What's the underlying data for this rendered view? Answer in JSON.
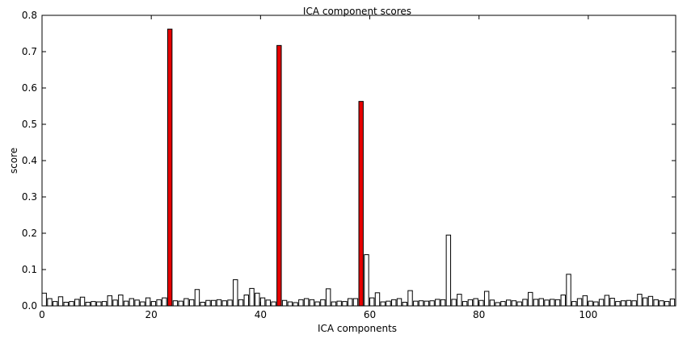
{
  "chart_data": {
    "type": "bar",
    "title": "ICA component scores",
    "xlabel": "ICA components",
    "ylabel": "score",
    "xlim": [
      0,
      116
    ],
    "ylim": [
      0,
      0.8
    ],
    "xticks": [
      0,
      20,
      40,
      60,
      80,
      100
    ],
    "xtick_labels": [
      "0",
      "20",
      "40",
      "60",
      "80",
      "100"
    ],
    "yticks": [
      0,
      0.1,
      0.2,
      0.3,
      0.4,
      0.5,
      0.6,
      0.7,
      0.8
    ],
    "ytick_labels": [
      "0.0",
      "0.1",
      "0.2",
      "0.3",
      "0.4",
      "0.5",
      "0.6",
      "0.7",
      "0.8"
    ],
    "grid": false,
    "bar_width": 0.8,
    "default_color": "#ffffff",
    "highlight_color": "#e60000",
    "edge_color": "#000000",
    "highlighted": [
      23,
      43,
      58
    ],
    "values": [
      0.035,
      0.02,
      0.012,
      0.025,
      0.01,
      0.012,
      0.018,
      0.024,
      0.01,
      0.012,
      0.011,
      0.012,
      0.028,
      0.016,
      0.03,
      0.013,
      0.02,
      0.016,
      0.011,
      0.022,
      0.012,
      0.017,
      0.022,
      0.762,
      0.014,
      0.013,
      0.02,
      0.017,
      0.045,
      0.01,
      0.015,
      0.015,
      0.017,
      0.014,
      0.016,
      0.072,
      0.017,
      0.03,
      0.048,
      0.035,
      0.022,
      0.016,
      0.011,
      0.717,
      0.015,
      0.011,
      0.009,
      0.017,
      0.02,
      0.017,
      0.011,
      0.017,
      0.047,
      0.011,
      0.013,
      0.012,
      0.02,
      0.02,
      0.563,
      0.141,
      0.022,
      0.036,
      0.011,
      0.013,
      0.017,
      0.02,
      0.01,
      0.042,
      0.013,
      0.014,
      0.013,
      0.014,
      0.018,
      0.017,
      0.195,
      0.018,
      0.032,
      0.012,
      0.017,
      0.02,
      0.015,
      0.04,
      0.016,
      0.009,
      0.012,
      0.016,
      0.014,
      0.011,
      0.018,
      0.037,
      0.018,
      0.02,
      0.016,
      0.018,
      0.017,
      0.03,
      0.087,
      0.012,
      0.02,
      0.028,
      0.013,
      0.011,
      0.018,
      0.029,
      0.021,
      0.012,
      0.014,
      0.015,
      0.014,
      0.032,
      0.022,
      0.026,
      0.017,
      0.014,
      0.012,
      0.019
    ]
  }
}
